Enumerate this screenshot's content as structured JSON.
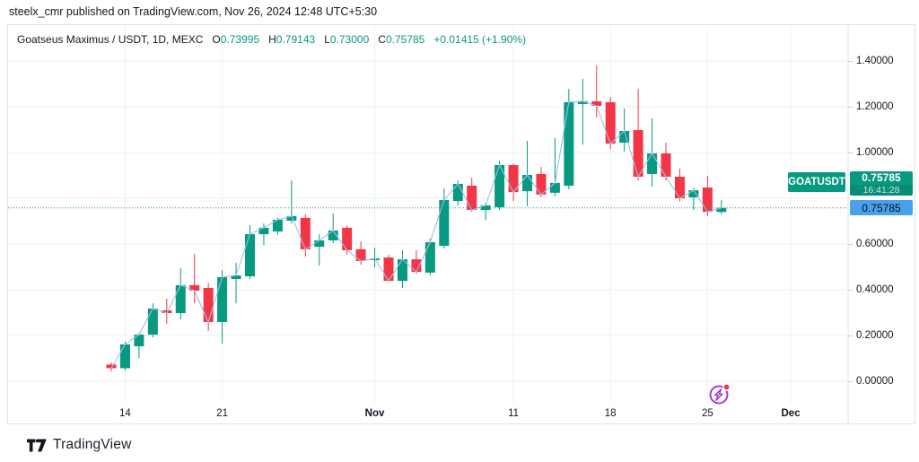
{
  "published_line": "steelx_cmr published on TradingView.com, Nov 26, 2024 12:48 UTC+5:30",
  "legend": {
    "title": "Goatseus Maximus / USDT, 1D, MEXC",
    "ohlc": [
      {
        "label": "O",
        "value": "0.73995"
      },
      {
        "label": "H",
        "value": "0.79143"
      },
      {
        "label": "L",
        "value": "0.73000"
      },
      {
        "label": "C",
        "value": "0.75785"
      }
    ],
    "change": "+0.01415 (+1.90%)"
  },
  "badges": {
    "symbol": "GOATUSDT",
    "last_price": "0.75785",
    "countdown": "16:41:28",
    "price_line_value": "0.75785"
  },
  "footer": {
    "brand": "TradingView"
  },
  "icons": {
    "idea_marker": "lightning-bolt-icon",
    "logo": "tradingview-logo-icon"
  },
  "colors": {
    "up": "#089981",
    "down": "#f23645",
    "close_line": "#9cc1e6",
    "grid": "#eef0f5",
    "border": "#e0e3eb",
    "text": "#131722",
    "badge_blue": "#47a1ec",
    "purple": "#a43ad6",
    "red_dot": "#f23645"
  },
  "chart_data": {
    "type": "candlestick",
    "symbol": "GOATUSDT",
    "interval": "1D",
    "exchange": "MEXC",
    "y_axis": {
      "min": 0.0,
      "max": 1.4,
      "tick_step": 0.2,
      "tick_labels": [
        "1.40000",
        "1.20000",
        "1.00000",
        "0.60000",
        "0.40000",
        "0.20000",
        "0.00000"
      ],
      "tick_values": [
        1.4,
        1.2,
        1.0,
        0.6,
        0.4,
        0.2,
        0.0
      ]
    },
    "x_axis": {
      "labels": [
        {
          "text": "14",
          "index": 1,
          "month": false
        },
        {
          "text": "21",
          "index": 8,
          "month": false
        },
        {
          "text": "Nov",
          "index": 19,
          "month": true
        },
        {
          "text": "11",
          "index": 29,
          "month": false
        },
        {
          "text": "18",
          "index": 36,
          "month": false
        },
        {
          "text": "25",
          "index": 43,
          "month": false
        },
        {
          "text": "Dec",
          "index": 49,
          "month": true
        }
      ]
    },
    "price_line": 0.75785,
    "candles": [
      [
        0.073,
        0.082,
        0.043,
        0.057
      ],
      [
        0.057,
        0.173,
        0.047,
        0.161
      ],
      [
        0.153,
        0.212,
        0.102,
        0.204
      ],
      [
        0.204,
        0.341,
        0.192,
        0.318
      ],
      [
        0.31,
        0.361,
        0.251,
        0.298
      ],
      [
        0.298,
        0.494,
        0.27,
        0.42
      ],
      [
        0.42,
        0.557,
        0.341,
        0.396
      ],
      [
        0.408,
        0.43,
        0.22,
        0.259
      ],
      [
        0.259,
        0.486,
        0.165,
        0.455
      ],
      [
        0.447,
        0.518,
        0.341,
        0.463
      ],
      [
        0.459,
        0.682,
        0.447,
        0.643
      ],
      [
        0.643,
        0.69,
        0.596,
        0.671
      ],
      [
        0.655,
        0.715,
        0.64,
        0.706
      ],
      [
        0.702,
        0.878,
        0.69,
        0.722
      ],
      [
        0.714,
        0.73,
        0.545,
        0.577
      ],
      [
        0.588,
        0.643,
        0.506,
        0.616
      ],
      [
        0.616,
        0.733,
        0.604,
        0.659
      ],
      [
        0.671,
        0.682,
        0.553,
        0.573
      ],
      [
        0.577,
        0.612,
        0.51,
        0.526
      ],
      [
        0.53,
        0.584,
        0.498,
        0.537
      ],
      [
        0.541,
        0.553,
        0.435,
        0.439
      ],
      [
        0.439,
        0.573,
        0.408,
        0.533
      ],
      [
        0.533,
        0.573,
        0.47,
        0.478
      ],
      [
        0.475,
        0.624,
        0.463,
        0.608
      ],
      [
        0.592,
        0.843,
        0.58,
        0.792
      ],
      [
        0.788,
        0.878,
        0.769,
        0.863
      ],
      [
        0.855,
        0.89,
        0.741,
        0.749
      ],
      [
        0.749,
        0.78,
        0.706,
        0.769
      ],
      [
        0.761,
        0.965,
        0.749,
        0.945
      ],
      [
        0.945,
        0.953,
        0.788,
        0.827
      ],
      [
        0.831,
        1.051,
        0.765,
        0.902
      ],
      [
        0.906,
        0.937,
        0.804,
        0.816
      ],
      [
        0.824,
        1.063,
        0.808,
        0.867
      ],
      [
        0.855,
        1.278,
        0.839,
        1.22
      ],
      [
        1.212,
        1.322,
        1.035,
        1.224
      ],
      [
        1.224,
        1.38,
        1.153,
        1.204
      ],
      [
        1.22,
        1.243,
        1.016,
        1.039
      ],
      [
        1.043,
        1.192,
        1.004,
        1.094
      ],
      [
        1.098,
        1.278,
        0.878,
        0.894
      ],
      [
        0.906,
        1.15,
        0.851,
        0.996
      ],
      [
        0.996,
        1.043,
        0.878,
        0.894
      ],
      [
        0.894,
        0.929,
        0.788,
        0.8
      ],
      [
        0.804,
        0.847,
        0.749,
        0.835
      ],
      [
        0.847,
        0.898,
        0.722,
        0.741
      ],
      [
        0.73995,
        0.79143,
        0.73,
        0.75785
      ]
    ]
  }
}
